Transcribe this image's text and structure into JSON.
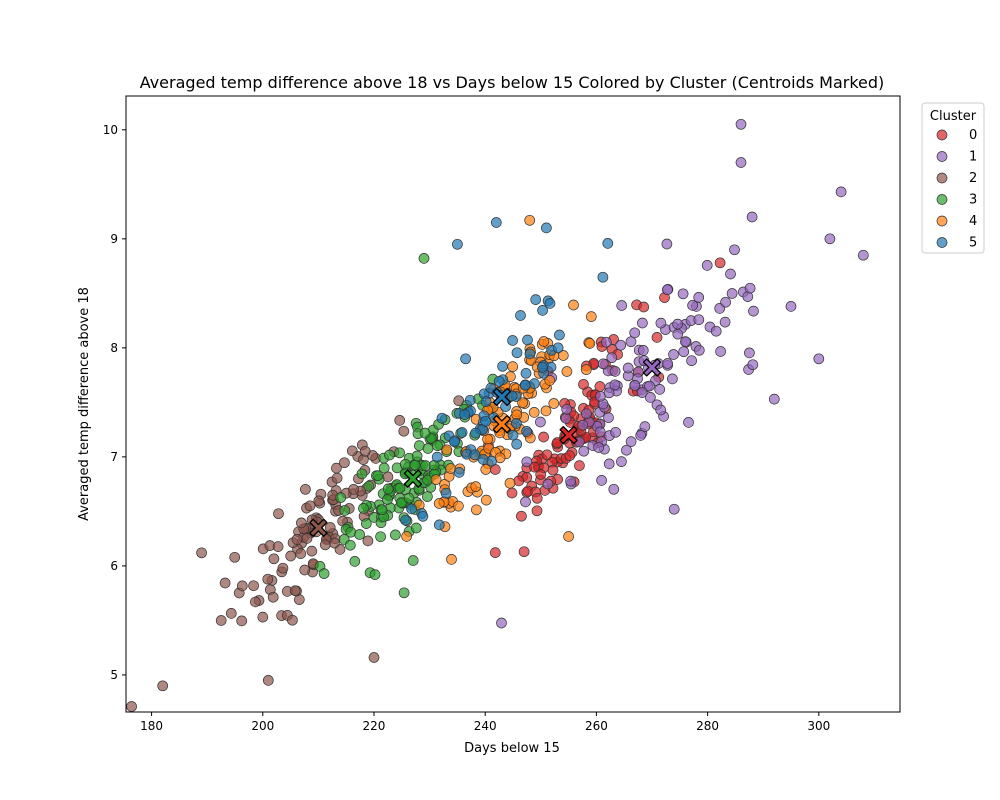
{
  "chart_data": {
    "type": "scatter",
    "title": "Averaged temp difference above 18 vs Days below 15 Colored by Cluster (Centroids Marked)",
    "xlabel": "Days below 15",
    "ylabel": "Averaged temp difference above 18",
    "xlim": [
      175.4,
      314.6
    ],
    "ylim": [
      4.66,
      10.31
    ],
    "xticks": [
      180,
      200,
      220,
      240,
      260,
      280,
      300
    ],
    "yticks": [
      5,
      6,
      7,
      8,
      9,
      10
    ],
    "grid": false,
    "legend": {
      "title": "Cluster",
      "placement": "outside-upper-right"
    },
    "series": [
      {
        "name": "0",
        "color": "#d62728"
      },
      {
        "name": "1",
        "color": "#9467bd"
      },
      {
        "name": "2",
        "color": "#8c564b"
      },
      {
        "name": "3",
        "color": "#2ca02c"
      },
      {
        "name": "4",
        "color": "#ff7f0e"
      },
      {
        "name": "5",
        "color": "#1f77b4"
      }
    ],
    "centroids": [
      {
        "series": "0",
        "x": 255,
        "y": 7.2
      },
      {
        "series": "1",
        "x": 270,
        "y": 7.82
      },
      {
        "series": "2",
        "x": 210,
        "y": 6.35
      },
      {
        "series": "3",
        "x": 227,
        "y": 6.8
      },
      {
        "series": "4",
        "x": 243,
        "y": 7.3
      },
      {
        "series": "5",
        "x": 243,
        "y": 7.55
      }
    ],
    "sample_points": [
      {
        "series": "2",
        "x": 182,
        "y": 4.9
      },
      {
        "series": "2",
        "x": 201,
        "y": 4.95
      },
      {
        "series": "2",
        "x": 189,
        "y": 6.12
      },
      {
        "series": "2",
        "x": 220,
        "y": 5.16
      },
      {
        "series": "1",
        "x": 286,
        "y": 10.05
      },
      {
        "series": "1",
        "x": 286,
        "y": 9.7
      },
      {
        "series": "1",
        "x": 304,
        "y": 9.43
      },
      {
        "series": "1",
        "x": 308,
        "y": 8.85
      },
      {
        "series": "1",
        "x": 302,
        "y": 9.0
      },
      {
        "series": "1",
        "x": 288,
        "y": 9.2
      },
      {
        "series": "1",
        "x": 274,
        "y": 6.52
      },
      {
        "series": "4",
        "x": 248,
        "y": 9.17
      },
      {
        "series": "5",
        "x": 242,
        "y": 9.15
      },
      {
        "series": "5",
        "x": 251,
        "y": 9.1
      },
      {
        "series": "5",
        "x": 235,
        "y": 8.95
      },
      {
        "series": "3",
        "x": 229,
        "y": 8.82
      },
      {
        "series": "4",
        "x": 255,
        "y": 6.27
      },
      {
        "series": "0",
        "x": 247,
        "y": 6.13
      },
      {
        "series": "1",
        "x": 300,
        "y": 7.9
      },
      {
        "series": "1",
        "x": 295,
        "y": 8.38
      },
      {
        "series": "1",
        "x": 292,
        "y": 7.53
      }
    ]
  }
}
